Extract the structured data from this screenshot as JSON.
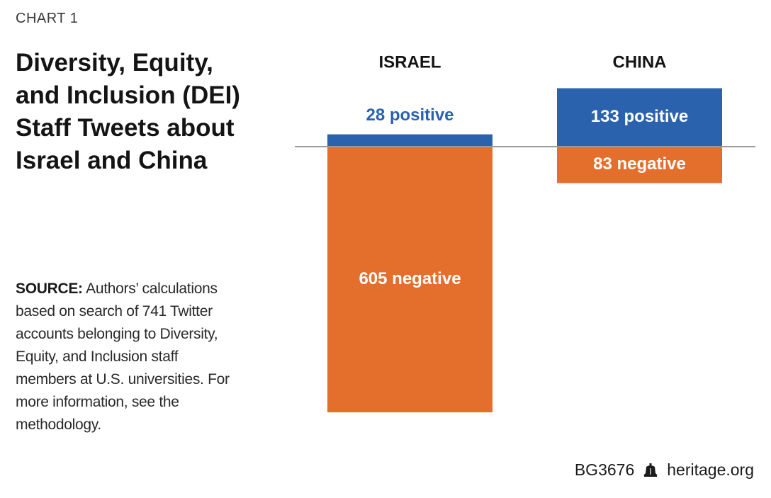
{
  "header": {
    "chart_label": "CHART 1",
    "title": "Diversity, Equity, and Inclusion (DEI) Staff Tweets about Israel and China"
  },
  "source": {
    "label": "SOURCE:",
    "text": "Authors’ calculations based on search of 741 Twitter accounts belonging to Diversity, Equity, and Inclusion staff members at U.S. universities. For more information, see the methodology."
  },
  "footer": {
    "code": "BG3676",
    "site": "heritage.org",
    "icon": "liberty-bell-icon"
  },
  "colors": {
    "positive": "#2a62ad",
    "negative": "#e46f2d",
    "baseline": "#9a9a9a",
    "positive_label_outside": "#2a62ad",
    "label_inside": "#ffffff"
  },
  "chart_data": {
    "type": "bar",
    "categories": [
      "ISRAEL",
      "CHINA"
    ],
    "series": [
      {
        "name": "positive",
        "values": [
          28,
          133
        ]
      },
      {
        "name": "negative",
        "values": [
          605,
          83
        ]
      }
    ],
    "data_labels": {
      "positive": [
        "28 positive",
        "133 positive"
      ],
      "negative": [
        "605 negative",
        "83 negative"
      ]
    },
    "layout": "diverging",
    "grid": false
  }
}
